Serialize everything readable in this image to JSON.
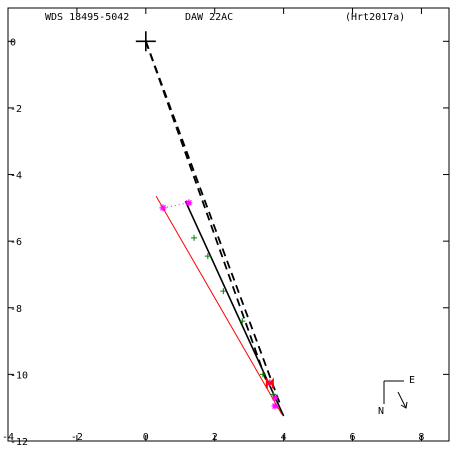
{
  "header": {
    "wds_id": "WDS 18495-5042",
    "discoverer": "DAW  22AC",
    "reference": "(Hrt2017a)"
  },
  "orientation": {
    "east_label": "E",
    "north_label": "N"
  },
  "chart_data": {
    "type": "scatter",
    "title": "",
    "xlabel": "",
    "ylabel": "",
    "xlim": [
      -4,
      8.8
    ],
    "ylim": [
      -12,
      1
    ],
    "x_ticks": [
      -4,
      -2,
      0,
      2,
      4,
      6,
      8
    ],
    "y_ticks": [
      0,
      -2,
      -4,
      -6,
      -8,
      -10,
      -12
    ],
    "grid": false,
    "primary_star": {
      "x": 0,
      "y": 0
    },
    "series": [
      {
        "marker": "magenta-asterisk",
        "color": "#ff00ff",
        "points": [
          [
            0.5,
            -5.0
          ],
          [
            1.25,
            -4.85
          ],
          [
            3.6,
            -10.25
          ],
          [
            3.75,
            -10.7
          ],
          [
            3.75,
            -10.95
          ]
        ]
      },
      {
        "marker": "green-plus",
        "color": "#008000",
        "points": [
          [
            1.4,
            -5.9
          ],
          [
            1.8,
            -6.45
          ],
          [
            2.25,
            -7.5
          ],
          [
            2.8,
            -8.4
          ],
          [
            3.4,
            -10.0
          ],
          [
            3.7,
            -10.6
          ]
        ]
      },
      {
        "marker": "red-m",
        "color": "#ff0000",
        "points": [
          [
            3.6,
            -10.3
          ]
        ]
      }
    ],
    "lines": [
      {
        "style": "dashed",
        "color": "#000000",
        "from": [
          0,
          0
        ],
        "to": [
          3.5,
          -10.2
        ]
      },
      {
        "style": "dashed",
        "color": "#000000",
        "from": [
          0,
          0
        ],
        "to": [
          3.9,
          -10.9
        ]
      },
      {
        "style": "solid",
        "color": "#000000",
        "from": [
          1.15,
          -4.8
        ],
        "to": [
          4.0,
          -11.25
        ]
      },
      {
        "style": "solid",
        "color": "#ff0000",
        "from": [
          0.3,
          -4.65
        ],
        "to": [
          3.95,
          -11.2
        ]
      },
      {
        "style": "dotted",
        "color": "#ff00ff",
        "from": [
          0.5,
          -5.0
        ],
        "to": [
          1.25,
          -4.85
        ]
      }
    ]
  }
}
